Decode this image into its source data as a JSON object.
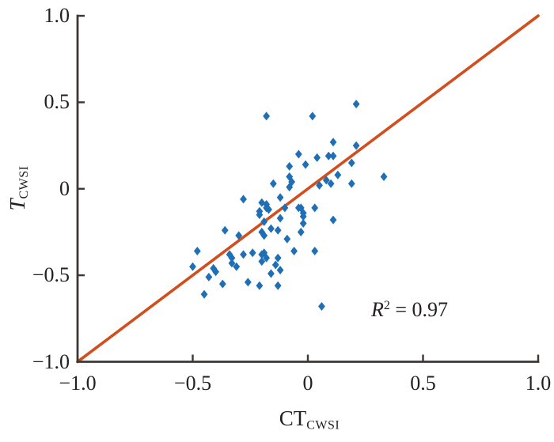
{
  "figure": {
    "background": "#ffffff",
    "axis_color": "#3d3835",
    "text_color": "#231f20"
  },
  "chart_data": {
    "type": "scatter",
    "title": "",
    "grid": false,
    "legend": false,
    "x_axis": {
      "label_main": "CT",
      "label_sub": "CWSI",
      "range": [
        -1.0,
        1.0
      ],
      "ticks": [
        -1.0,
        -0.5,
        0,
        0.5,
        1.0
      ],
      "tick_labels": [
        "−1.0",
        "−0.5",
        "0",
        "0.5",
        "1.0"
      ]
    },
    "y_axis": {
      "label_main": "T",
      "label_sub": "CWSI",
      "label_italic": true,
      "range": [
        -1.0,
        1.0
      ],
      "ticks": [
        -1.0,
        -0.5,
        0,
        0.5,
        1.0
      ],
      "tick_labels": [
        "−1.0",
        "−0.5",
        "0",
        "0.5",
        "1.0"
      ]
    },
    "marker": {
      "shape": "diamond",
      "color": "#1e6fb5"
    },
    "reference_line": {
      "description": "1:1 line",
      "from": [
        -1.0,
        -1.0
      ],
      "to": [
        1.0,
        1.0
      ],
      "color": "#d14f1e"
    },
    "annotation": {
      "full_text": "R² = 0.97",
      "variable": "R",
      "exponent": "2",
      "rest": " = 0.97",
      "r_squared": 0.97
    },
    "points": [
      [
        -0.18,
        0.42
      ],
      [
        0.02,
        0.42
      ],
      [
        0.21,
        0.49
      ],
      [
        -0.04,
        0.2
      ],
      [
        -0.08,
        0.13
      ],
      [
        0.11,
        0.27
      ],
      [
        0.21,
        0.25
      ],
      [
        0.04,
        0.18
      ],
      [
        0.09,
        0.19
      ],
      [
        0.11,
        0.19
      ],
      [
        -0.01,
        0.14
      ],
      [
        0.19,
        0.15
      ],
      [
        -0.15,
        0.03
      ],
      [
        -0.08,
        0.07
      ],
      [
        -0.07,
        0.04
      ],
      [
        -0.08,
        0.01
      ],
      [
        0.13,
        0.08
      ],
      [
        0.08,
        0.05
      ],
      [
        0.1,
        0.03
      ],
      [
        0.05,
        0.02
      ],
      [
        0.19,
        0.03
      ],
      [
        0.33,
        0.07
      ],
      [
        -0.28,
        -0.06
      ],
      [
        -0.12,
        -0.05
      ],
      [
        -0.2,
        -0.08
      ],
      [
        -0.18,
        -0.09
      ],
      [
        -0.21,
        -0.13
      ],
      [
        -0.17,
        -0.12
      ],
      [
        -0.04,
        -0.11
      ],
      [
        -0.03,
        -0.11
      ],
      [
        0.03,
        -0.11
      ],
      [
        -0.18,
        -0.11
      ],
      [
        -0.1,
        -0.11
      ],
      [
        -0.21,
        -0.15
      ],
      [
        -0.02,
        -0.14
      ],
      [
        -0.02,
        -0.16
      ],
      [
        -0.19,
        -0.19
      ],
      [
        -0.12,
        -0.17
      ],
      [
        0.11,
        -0.18
      ],
      [
        -0.02,
        -0.2
      ],
      [
        -0.16,
        -0.23
      ],
      [
        -0.13,
        -0.24
      ],
      [
        -0.36,
        -0.24
      ],
      [
        -0.3,
        -0.27
      ],
      [
        -0.2,
        -0.25
      ],
      [
        -0.19,
        -0.27
      ],
      [
        -0.09,
        -0.29
      ],
      [
        -0.03,
        -0.25
      ],
      [
        -0.48,
        -0.36
      ],
      [
        -0.28,
        -0.38
      ],
      [
        -0.24,
        -0.37
      ],
      [
        -0.2,
        -0.38
      ],
      [
        -0.19,
        -0.37
      ],
      [
        -0.18,
        -0.4
      ],
      [
        -0.13,
        -0.4
      ],
      [
        -0.34,
        -0.38
      ],
      [
        -0.33,
        -0.4
      ],
      [
        -0.06,
        -0.36
      ],
      [
        0.03,
        -0.36
      ],
      [
        -0.5,
        -0.45
      ],
      [
        -0.33,
        -0.43
      ],
      [
        -0.31,
        -0.45
      ],
      [
        -0.41,
        -0.46
      ],
      [
        -0.4,
        -0.48
      ],
      [
        -0.43,
        -0.51
      ],
      [
        -0.14,
        -0.44
      ],
      [
        -0.12,
        -0.47
      ],
      [
        -0.16,
        -0.49
      ],
      [
        -0.2,
        -0.42
      ],
      [
        -0.37,
        -0.55
      ],
      [
        -0.26,
        -0.54
      ],
      [
        -0.21,
        -0.56
      ],
      [
        -0.13,
        -0.56
      ],
      [
        -0.45,
        -0.61
      ],
      [
        0.06,
        -0.68
      ]
    ]
  }
}
